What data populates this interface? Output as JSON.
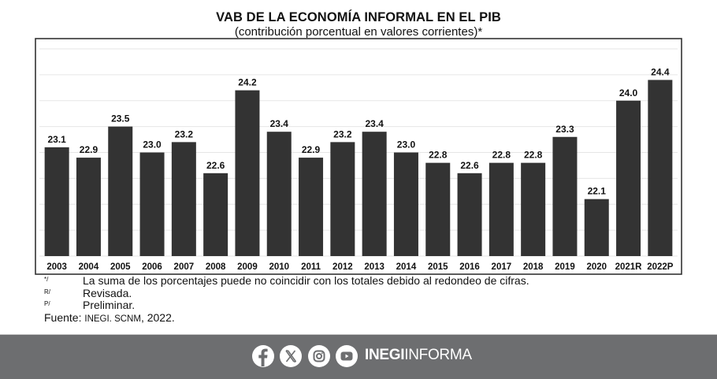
{
  "chart_data": {
    "type": "bar",
    "title": "VAB DE LA ECONOMÍA INFORMAL EN EL PIB",
    "subtitle": "(contribución porcentual en valores corrientes)*",
    "categories": [
      "2003",
      "2004",
      "2005",
      "2006",
      "2007",
      "2008",
      "2009",
      "2010",
      "2011",
      "2012",
      "2013",
      "2014",
      "2015",
      "2016",
      "2017",
      "2018",
      "2019",
      "2020",
      "2021R",
      "2022P"
    ],
    "values": [
      23.1,
      22.9,
      23.5,
      23.0,
      23.2,
      22.6,
      24.2,
      23.4,
      22.9,
      23.2,
      23.4,
      23.0,
      22.8,
      22.6,
      22.8,
      22.8,
      23.3,
      22.1,
      24.0,
      24.4
    ],
    "labels": [
      "23.1",
      "22.9",
      "23.5",
      "23.0",
      "23.2",
      "22.6",
      "24.2",
      "23.4",
      "22.9",
      "23.2",
      "23.4",
      "23.0",
      "22.8",
      "22.6",
      "22.8",
      "22.8",
      "23.3",
      "22.1",
      "24.0",
      "24.4"
    ],
    "xlabel": "",
    "ylabel": "",
    "ylim": [
      21.0,
      25.0
    ],
    "grid_step": 0.5,
    "grid": true,
    "bar_color": "#333333",
    "grid_color": "#e6e6e6"
  },
  "notes": [
    {
      "mark": "*/",
      "text": "La suma de los porcentajes puede no coincidir con los totales debido al redondeo de cifras."
    },
    {
      "mark": "R/",
      "text": "Revisada."
    },
    {
      "mark": "P/",
      "text": "Preliminar."
    }
  ],
  "source": {
    "label": "Fuente:",
    "org": "INEGI. SCNM",
    "year": ", 2022."
  },
  "footer": {
    "background": "#6d6e70",
    "icons": [
      "facebook-icon",
      "x-icon",
      "instagram-icon",
      "youtube-icon"
    ],
    "brand_bold": "INEGI",
    "brand_light": "INFORMA"
  }
}
